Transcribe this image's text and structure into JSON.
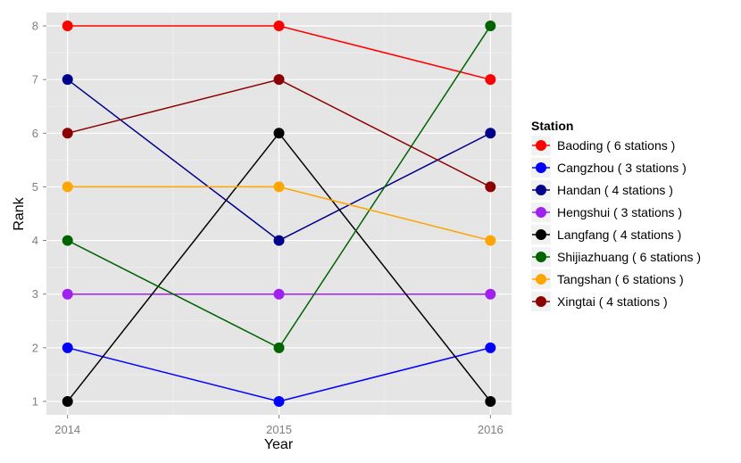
{
  "chart_data": {
    "type": "line",
    "title": "",
    "xlabel": "Year",
    "ylabel": "Rank",
    "x": [
      2014,
      2015,
      2016
    ],
    "x_tick_labels": [
      "2014",
      "2015",
      "2016"
    ],
    "ylim": [
      0.75,
      8.25
    ],
    "y_ticks": [
      1,
      2,
      3,
      4,
      5,
      6,
      7,
      8
    ],
    "y_tick_labels": [
      "1",
      "2",
      "3",
      "4",
      "5",
      "6",
      "7",
      "8"
    ],
    "grid": true,
    "legend_placement": "right",
    "legend_title": "Station",
    "series": [
      {
        "name": "Baoding",
        "label": "Baoding ( 6 stations )",
        "color": "#FF0000",
        "values": [
          8,
          8,
          7
        ]
      },
      {
        "name": "Cangzhou",
        "label": "Cangzhou ( 3 stations )",
        "color": "#0000FF",
        "values": [
          2,
          1,
          2
        ]
      },
      {
        "name": "Handan",
        "label": "Handan ( 4 stations )",
        "color": "#00008B",
        "values": [
          7,
          4,
          6
        ]
      },
      {
        "name": "Hengshui",
        "label": "Hengshui ( 3 stations )",
        "color": "#A020F0",
        "values": [
          3,
          3,
          3
        ]
      },
      {
        "name": "Langfang",
        "label": "Langfang ( 4 stations )",
        "color": "#000000",
        "values": [
          1,
          6,
          1
        ]
      },
      {
        "name": "Shijiazhuang",
        "label": "Shijiazhuang ( 6 stations )",
        "color": "#006400",
        "values": [
          4,
          2,
          8
        ]
      },
      {
        "name": "Tangshan",
        "label": "Tangshan ( 6 stations )",
        "color": "#FFA500",
        "values": [
          5,
          5,
          4
        ]
      },
      {
        "name": "Xingtai",
        "label": "Xingtai ( 4 stations )",
        "color": "#8B0000",
        "values": [
          6,
          7,
          5
        ]
      }
    ]
  }
}
